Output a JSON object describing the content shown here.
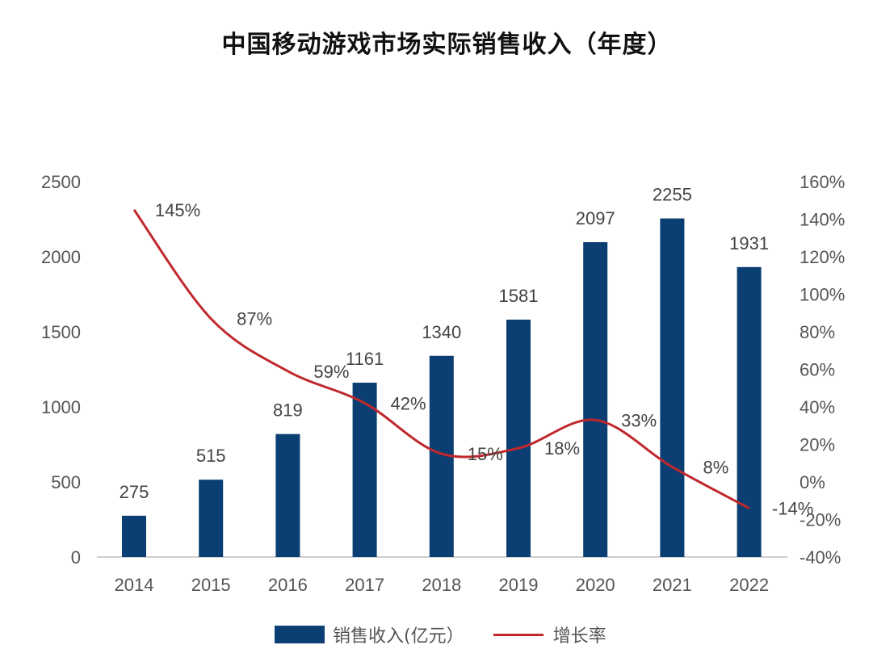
{
  "chart_data": {
    "type": "bar+line",
    "title": "中国移动游戏市场实际销售收入（年度）",
    "categories": [
      "2014",
      "2015",
      "2016",
      "2017",
      "2018",
      "2019",
      "2020",
      "2021",
      "2022"
    ],
    "series": [
      {
        "name": "销售收入(亿元）",
        "type": "bar",
        "axis": "left",
        "values": [
          275,
          515,
          819,
          1161,
          1340,
          1581,
          2097,
          2255,
          1931
        ],
        "labels": [
          "275",
          "515",
          "819",
          "1161",
          "1340",
          "1581",
          "2097",
          "2255",
          "1931"
        ],
        "color": "#0b3e72"
      },
      {
        "name": "增长率",
        "type": "line",
        "axis": "right",
        "values": [
          145,
          87,
          59,
          42,
          15,
          18,
          33,
          8,
          -14
        ],
        "labels": [
          "145%",
          "87%",
          "59%",
          "42%",
          "15%",
          "18%",
          "33%",
          "8%",
          "-14%"
        ],
        "color": "#c0282d"
      }
    ],
    "left_axis": {
      "ylim": [
        0,
        2500
      ],
      "ticks": [
        "0",
        "500",
        "1000",
        "1500",
        "2000",
        "2500"
      ]
    },
    "right_axis": {
      "ylim": [
        -40,
        160
      ],
      "ticks": [
        "-40%",
        "-20%",
        "0%",
        "20%",
        "40%",
        "60%",
        "80%",
        "100%",
        "120%",
        "140%",
        "160%"
      ]
    },
    "grid": false,
    "legend": "bottom"
  }
}
